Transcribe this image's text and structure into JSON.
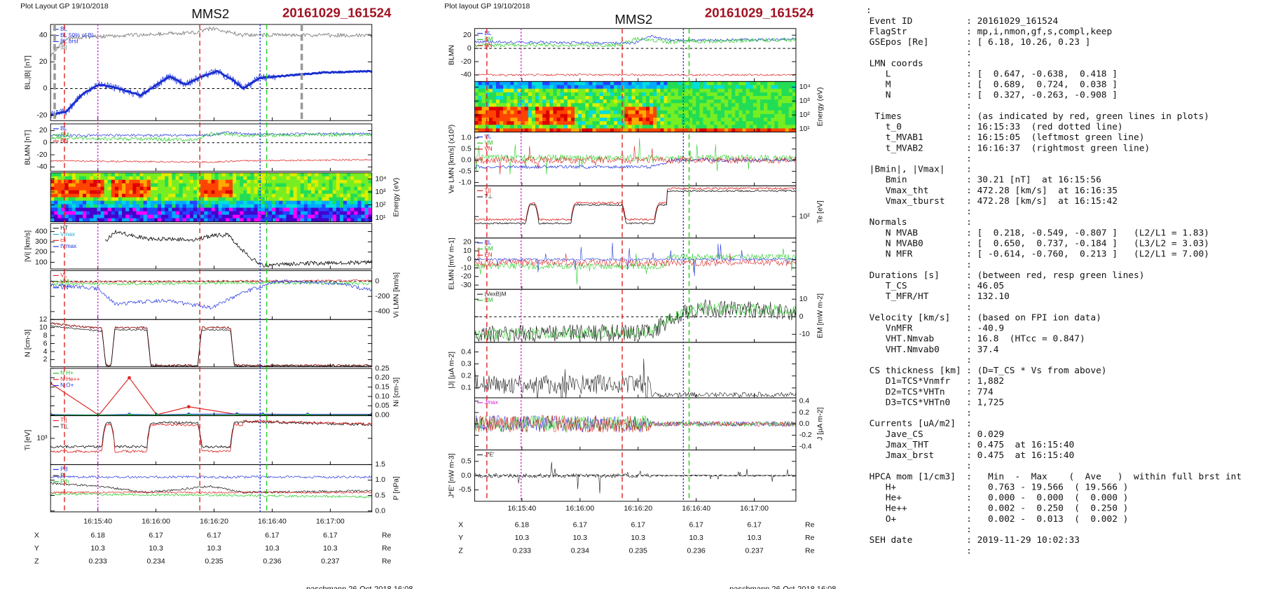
{
  "plots": [
    {
      "header": "Plot Layout GP 19/10/2018",
      "instrument": "MMS2",
      "event": "20161029_161524",
      "panels": [
        {
          "kind": "line",
          "ylabel": "BL,|B| [nT]",
          "side": "left",
          "ylim": [
            -24,
            48
          ],
          "yticks": [
            -20,
            0,
            20,
            40
          ],
          "legend": [
            {
              "text": "BL",
              "color": "#2233dd"
            },
            {
              "text": "BL 50% of BL",
              "color": "#2233dd"
            },
            {
              "text": "BL brst",
              "color": "#2233dd"
            },
            {
              "text": "|B|",
              "color": "#777777"
            }
          ]
        },
        {
          "kind": "line",
          "ylabel": "BLMN [nT]",
          "side": "left",
          "ylim": [
            -47,
            31
          ],
          "yticks": [
            -40,
            -20,
            0,
            20
          ],
          "legend": [
            {
              "text": "BL",
              "color": "#2233dd"
            },
            {
              "text": "BM",
              "color": "#22bb22"
            },
            {
              "text": "BN",
              "color": "#dd2222"
            }
          ]
        },
        {
          "kind": "spectrogram",
          "ylabel": "Energy (eV)",
          "side": "right",
          "log": true,
          "ylim": [
            5,
            30000
          ],
          "yticks": [
            {
              "value": 10,
              "label": "10¹"
            },
            {
              "value": 100,
              "label": "10²"
            },
            {
              "value": 1000,
              "label": "10³"
            },
            {
              "value": 10000,
              "label": "10⁴"
            }
          ],
          "legend": []
        },
        {
          "kind": "line",
          "ylabel": "|Vi| [km/s]",
          "side": "left",
          "ylim": [
            35,
            480
          ],
          "yticks": [
            100,
            200,
            300,
            400
          ],
          "legend": [
            {
              "text": "HT",
              "color": "#222222"
            },
            {
              "text": "Vmax",
              "color": "#22aacc"
            },
            {
              "text": "cs",
              "color": "#dd2222"
            },
            {
              "text": "tVmax",
              "color": "#2233dd"
            }
          ]
        },
        {
          "kind": "line",
          "ylabel": "Vi LMN [km/s]",
          "side": "right",
          "ylim": [
            -505,
            140
          ],
          "yticks": [
            -400,
            -200,
            0
          ],
          "legend": [
            {
              "text": "VL",
              "color": "#dd2222"
            },
            {
              "text": "VM",
              "color": "#22bb22"
            },
            {
              "text": "VN",
              "color": "#2233dd"
            }
          ]
        },
        {
          "kind": "line",
          "ylabel": "N [cm-3]",
          "side": "left",
          "ylim": [
            0.2,
            12
          ],
          "yticks": [
            2,
            4,
            6,
            8,
            10,
            12
          ],
          "legend": []
        },
        {
          "kind": "line",
          "ylabel": "Ni [cm-3]",
          "side": "right",
          "ylim": [
            -0.003,
            0.25
          ],
          "yticks": [
            {
              "value": 0,
              "label": "0.00"
            },
            0.05,
            {
              "value": 0.1,
              "label": "0.10"
            },
            0.15,
            {
              "value": 0.2,
              "label": "0.20"
            },
            0.25
          ],
          "legend": [
            {
              "text": "N H+",
              "color": "#22bb22"
            },
            {
              "text": "N He++",
              "color": "#dd2222"
            },
            {
              "text": "N O+",
              "color": "#2233dd"
            }
          ]
        },
        {
          "kind": "line",
          "ylabel": "Ti [eV]",
          "side": "left",
          "log": true,
          "ylim": [
            200,
            4000
          ],
          "yticks": [
            {
              "value": 1000,
              "label": "10³"
            }
          ],
          "legend": [
            {
              "text": "T||",
              "color": "#dd2222"
            },
            {
              "text": "T⊥",
              "color": "#222222"
            }
          ]
        },
        {
          "kind": "line",
          "ylabel": "P [nPa]",
          "side": "right",
          "ylim": [
            -0.03,
            1.5
          ],
          "yticks": [
            {
              "value": 0,
              "label": "0.0"
            },
            0.5,
            {
              "value": 1,
              "label": "1.0"
            },
            1.5
          ],
          "legend": [
            {
              "text": "PB",
              "color": "#2233dd"
            },
            {
              "text": "Pi",
              "color": "#222222"
            },
            {
              "text": "Pth",
              "color": "#22bb22"
            }
          ]
        }
      ],
      "time_ticks": [
        "16:15:40",
        "16:16:00",
        "16:16:20",
        "16:16:40",
        "16:17:00"
      ],
      "rows": [
        {
          "label": "X",
          "values": [
            6.18,
            6.17,
            6.17,
            6.17,
            6.17
          ],
          "unit": "Re"
        },
        {
          "label": "Y",
          "values": [
            10.3,
            10.3,
            10.3,
            10.3,
            10.3
          ],
          "unit": "Re"
        },
        {
          "label": "Z",
          "values": [
            0.233,
            0.234,
            0.235,
            0.236,
            0.237
          ],
          "unit": "Re"
        }
      ],
      "footer": "paschmann 26-Oct-2018 16:08"
    },
    {
      "header": "Plot layout GP 19/10/2018",
      "instrument": "MMS2",
      "event": "20161029_161524",
      "panels": [
        {
          "kind": "line",
          "ylabel": "BLMN",
          "side": "left",
          "ylim": [
            -50,
            30
          ],
          "yticks": [
            -40,
            -20,
            0,
            20
          ],
          "legend": [
            {
              "text": "BL",
              "color": "#2233dd"
            },
            {
              "text": "BM",
              "color": "#22bb22"
            },
            {
              "text": "BN",
              "color": "#dd2222"
            }
          ]
        },
        {
          "kind": "spectrogram",
          "ylabel": "Energy (eV)",
          "side": "right",
          "log": true,
          "ylim": [
            6,
            25000
          ],
          "yticks": [
            {
              "value": 10,
              "label": "10¹"
            },
            {
              "value": 100,
              "label": "10²"
            },
            {
              "value": 1000,
              "label": "10³"
            },
            {
              "value": 10000,
              "label": "10⁴"
            }
          ],
          "legend": []
        },
        {
          "kind": "line",
          "ylabel": "Ve LMN [km/s] (x10³)",
          "side": "left",
          "ylim": [
            -1.15,
            1.26
          ],
          "yticks": [
            {
              "value": -1,
              "label": "-1.0"
            },
            -0.5,
            {
              "value": 0,
              "label": "0.0"
            },
            0.5,
            {
              "value": 1,
              "label": "1.0"
            }
          ],
          "legend": [
            {
              "text": "VL",
              "color": "#2233dd"
            },
            {
              "text": "VM",
              "color": "#22bb22"
            },
            {
              "text": "VN",
              "color": "#dd2222"
            }
          ]
        },
        {
          "kind": "line",
          "ylabel": "Te [eV]",
          "side": "right",
          "log": true,
          "ylim": [
            20,
            1000
          ],
          "yticks": [
            {
              "value": 100,
              "label": "10²"
            }
          ],
          "legend": [
            {
              "text": "T||",
              "color": "#dd2222"
            },
            {
              "text": "T⊥",
              "color": "#222222"
            }
          ]
        },
        {
          "kind": "line",
          "ylabel": "ELMN [mV m-1]",
          "side": "left",
          "ylim": [
            -35,
            25
          ],
          "yticks": [
            -30,
            -20,
            -10,
            0,
            10,
            20
          ],
          "legend": [
            {
              "text": "EL",
              "color": "#2233dd"
            },
            {
              "text": "EM",
              "color": "#22bb22"
            },
            {
              "text": "EN",
              "color": "#dd2222"
            }
          ]
        },
        {
          "kind": "line",
          "ylabel": "EM [mW m-2]",
          "side": "right",
          "ylim": [
            -14.6,
            15.6
          ],
          "yticks": [
            -10,
            0,
            10
          ],
          "legend": [
            {
              "text": "(VexB)M",
              "color": "#222222"
            },
            {
              "text": "EM",
              "color": "#22bb22"
            }
          ]
        },
        {
          "kind": "line",
          "ylabel": "|J| [µA m-2]",
          "side": "left",
          "ylim": [
            0.018,
            0.48
          ],
          "yticks": [
            0.1,
            0.2,
            0.3,
            0.4
          ],
          "legend": []
        },
        {
          "kind": "line",
          "ylabel": "J [µA m-2]",
          "side": "right",
          "ylim": [
            -0.46,
            0.46
          ],
          "yticks": [
            -0.4,
            -0.2,
            {
              "value": 0,
              "label": "0.0"
            },
            0.2,
            0.4
          ],
          "legend": [
            {
              "text": "Jmax",
              "color": "#cc22cc"
            }
          ]
        },
        {
          "kind": "line",
          "ylabel": "J*E' [nW m-3]",
          "side": "left",
          "ylim": [
            -0.9,
            0.9
          ],
          "yticks": [
            -0.5,
            {
              "value": 0,
              "label": "0.0"
            },
            0.5
          ],
          "legend": [
            {
              "text": "J*E'",
              "color": "#222222"
            }
          ]
        }
      ],
      "time_ticks": [
        "16:15:40",
        "16:16:00",
        "16:16:20",
        "16:16:40",
        "16:17:00"
      ],
      "rows": [
        {
          "label": "X",
          "values": [
            6.18,
            6.17,
            6.17,
            6.17,
            6.17
          ],
          "unit": "Re"
        },
        {
          "label": "Y",
          "values": [
            10.3,
            10.3,
            10.3,
            10.3,
            10.3
          ],
          "unit": "Re"
        },
        {
          "label": "Z",
          "values": [
            0.233,
            0.234,
            0.235,
            0.236,
            0.237
          ],
          "unit": "Re"
        }
      ],
      "footer": "paschmann 26-Oct-2018 16:08"
    }
  ],
  "text_block": {
    "lead": ":",
    "lines": [
      {
        "label": "Event ID",
        "value": ": 20161029_161524"
      },
      {
        "label": "FlagStr",
        "value": ": mp,i,nmon,gf,s,compl,keep"
      },
      {
        "label": "GSEpos [Re]",
        "value": ": [ 6.18, 10.26, 0.23 ]"
      },
      {
        "value": ":"
      },
      {
        "label": "LMN coords",
        "value": ":"
      },
      {
        "label": "   L",
        "value": ": [  0.647, -0.638,  0.418 ]"
      },
      {
        "label": "   M",
        "value": ": [  0.689,  0.724,  0.038 ]"
      },
      {
        "label": "   N",
        "value": ": [  0.327, -0.263, -0.908 ]"
      },
      {
        "value": ":"
      },
      {
        "label": " Times",
        "value": ": (as indicated by red, green lines in plots)"
      },
      {
        "label": "   t_0",
        "value": ": 16:15:33  (red dotted line)"
      },
      {
        "label": "   t_MVAB1",
        "value": ": 16:15:05  (leftmost green line)"
      },
      {
        "label": "   t_MVAB2",
        "value": ": 16:16:37  (rightmost green line)"
      },
      {
        "value": ":"
      },
      {
        "label": "|Bmin|, |Vmax|",
        "value": ":"
      },
      {
        "label": "   Bmin",
        "value": ": 30.21 [nT]  at 16:15:56"
      },
      {
        "label": "   Vmax_tht",
        "value": ": 472.28 [km/s]  at 16:16:35"
      },
      {
        "label": "   Vmax_tburst",
        "value": ": 472.28 [km/s]  at 16:15:42"
      },
      {
        "value": ":"
      },
      {
        "label": "Normals",
        "value": ":"
      },
      {
        "label": "   N MVAB",
        "value": ": [  0.218, -0.549, -0.807 ]   (L2/L1 = 1.83)"
      },
      {
        "label": "   N MVAB0",
        "value": ": [  0.650,  0.737, -0.184 ]   (L3/L2 = 3.03)"
      },
      {
        "label": "   N MFR",
        "value": ": [ -0.614, -0.760,  0.213 ]   (L2/L1 = 7.00)"
      },
      {
        "value": ":"
      },
      {
        "label": "Durations [s]",
        "value": ": (between red, resp green lines)"
      },
      {
        "label": "   T_CS",
        "value": ": 46.05"
      },
      {
        "label": "   T_MFR/HT",
        "value": ": 132.10"
      },
      {
        "value": ":"
      },
      {
        "label": "Velocity [km/s]",
        "value": ": (based on FPI ion data)"
      },
      {
        "label": "   VnMFR",
        "value": ": -40.9"
      },
      {
        "label": "   VHT.Nmvab",
        "value": ": 16.8  (HTcc = 0.847)"
      },
      {
        "label": "   VHT.Nmvab0",
        "value": ": 37.4"
      },
      {
        "value": ":"
      },
      {
        "label": "CS thickness [km]",
        "value": ": (D=T_CS * Vs from above)"
      },
      {
        "label": "   D1=TCS*Vnmfr",
        "value": ": 1,882"
      },
      {
        "label": "   D2=TCS*VHTn",
        "value": ": 774"
      },
      {
        "label": "   D3=TCS*VHTn0",
        "value": ": 1,725"
      },
      {
        "value": ":"
      },
      {
        "label": "Currents [uA/m2]",
        "value": ":"
      },
      {
        "label": "   Jave_CS",
        "value": ": 0.029"
      },
      {
        "label": "   Jmax_THT",
        "value": ": 0.475  at 16:15:40"
      },
      {
        "label": "   Jmax_brst",
        "value": ": 0.475  at 16:15:40"
      },
      {
        "value": ":"
      },
      {
        "label": "HPCA mom [1/cm3]",
        "value": ":   Min  -  Max    (  Ave   )  within full brst int"
      },
      {
        "label": "   H+",
        "value": ":   0.763 - 19.566  ( 19.566 )"
      },
      {
        "label": "   He+",
        "value": ":   0.000 -  0.000  (  0.000 )"
      },
      {
        "label": "   He++",
        "value": ":   0.002 -  0.250  (  0.250 )"
      },
      {
        "label": "   O+",
        "value": ":   0.002 -  0.013  (  0.002 )"
      },
      {
        "value": ":"
      },
      {
        "label": "SEH date",
        "value": ": 2019-11-29 10:02:33"
      },
      {
        "value": ":"
      }
    ]
  }
}
